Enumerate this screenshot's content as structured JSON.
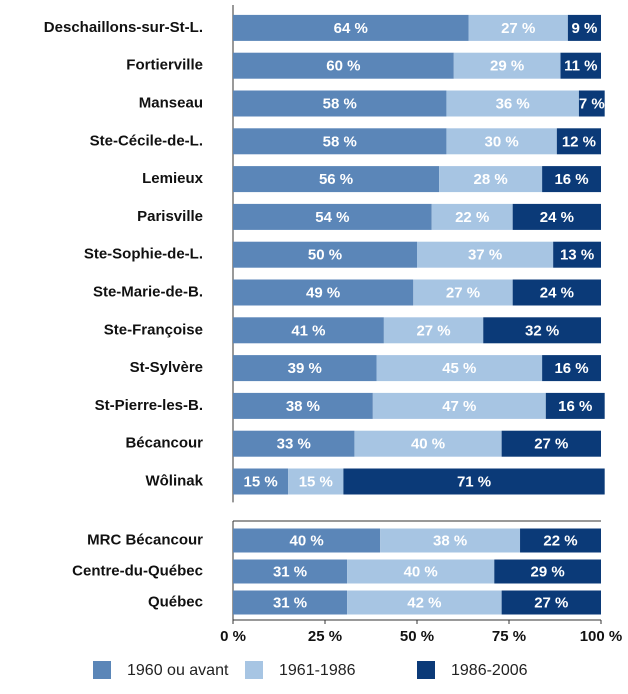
{
  "chart_data": [
    {
      "type": "stacked-bar",
      "categories": [
        "Deschaillons-sur-St-L.",
        "Fortierville",
        "Manseau",
        "Ste-Cécile-de-L.",
        "Lemieux",
        "Parisville",
        "Ste-Sophie-de-L.",
        "Ste-Marie-de-B.",
        "Ste-Françoise",
        "St-Sylvère",
        "St-Pierre-les-B.",
        "Bécancour",
        "Wôlinak"
      ],
      "xlim": [
        0,
        100
      ],
      "series": [
        {
          "color": "#5b86b8",
          "values": [
            64,
            60,
            58,
            58,
            56,
            54,
            50,
            49,
            41,
            39,
            38,
            33,
            15
          ],
          "value_labels": [
            "64 %",
            "60 %",
            "58 %",
            "58 %",
            "56 %",
            "54 %",
            "50 %",
            "49 %",
            "41 %",
            "39 %",
            "38 %",
            "33 %",
            "15 %"
          ]
        },
        {
          "color": "#a7c5e3",
          "values": [
            27,
            29,
            36,
            30,
            28,
            22,
            37,
            27,
            27,
            45,
            47,
            40,
            15
          ],
          "value_labels": [
            "27 %",
            "29 %",
            "36 %",
            "30 %",
            "28 %",
            "22 %",
            "37 %",
            "27 %",
            "27 %",
            "45 %",
            "47 %",
            "40 %",
            "15 %"
          ]
        },
        {
          "color": "#0b3a78",
          "values": [
            9,
            11,
            7,
            12,
            16,
            24,
            13,
            24,
            32,
            16,
            16,
            27,
            71
          ],
          "value_labels": [
            "9 %",
            "11 %",
            "7 %",
            "12 %",
            "16 %",
            "24 %",
            "13 %",
            "24 %",
            "32 %",
            "16 %",
            "16 %",
            "27 %",
            "71 %"
          ]
        }
      ]
    },
    {
      "type": "stacked-bar",
      "categories": [
        "MRC Bécancour",
        "Centre-du-Québec",
        "Québec"
      ],
      "xlim": [
        0,
        100
      ],
      "xticks": [
        {
          "value": 0,
          "label": "0 %"
        },
        {
          "value": 25,
          "label": "25 %"
        },
        {
          "value": 50,
          "label": "50 %"
        },
        {
          "value": 75,
          "label": "75 %"
        },
        {
          "value": 100,
          "label": "100 %"
        }
      ],
      "legend": "bottom",
      "series": [
        {
          "name": "1960 ou avant",
          "color": "#5b86b8",
          "values": [
            40,
            31,
            31
          ],
          "value_labels": [
            "40 %",
            "31 %",
            "31 %"
          ]
        },
        {
          "name": "1961-1986",
          "color": "#a7c5e3",
          "values": [
            38,
            40,
            42
          ],
          "value_labels": [
            "38 %",
            "40 %",
            "42 %"
          ]
        },
        {
          "name": "1986-2006",
          "color": "#0b3a78",
          "values": [
            22,
            29,
            27
          ],
          "value_labels": [
            "22 %",
            "29 %",
            "27 %"
          ]
        }
      ]
    }
  ]
}
